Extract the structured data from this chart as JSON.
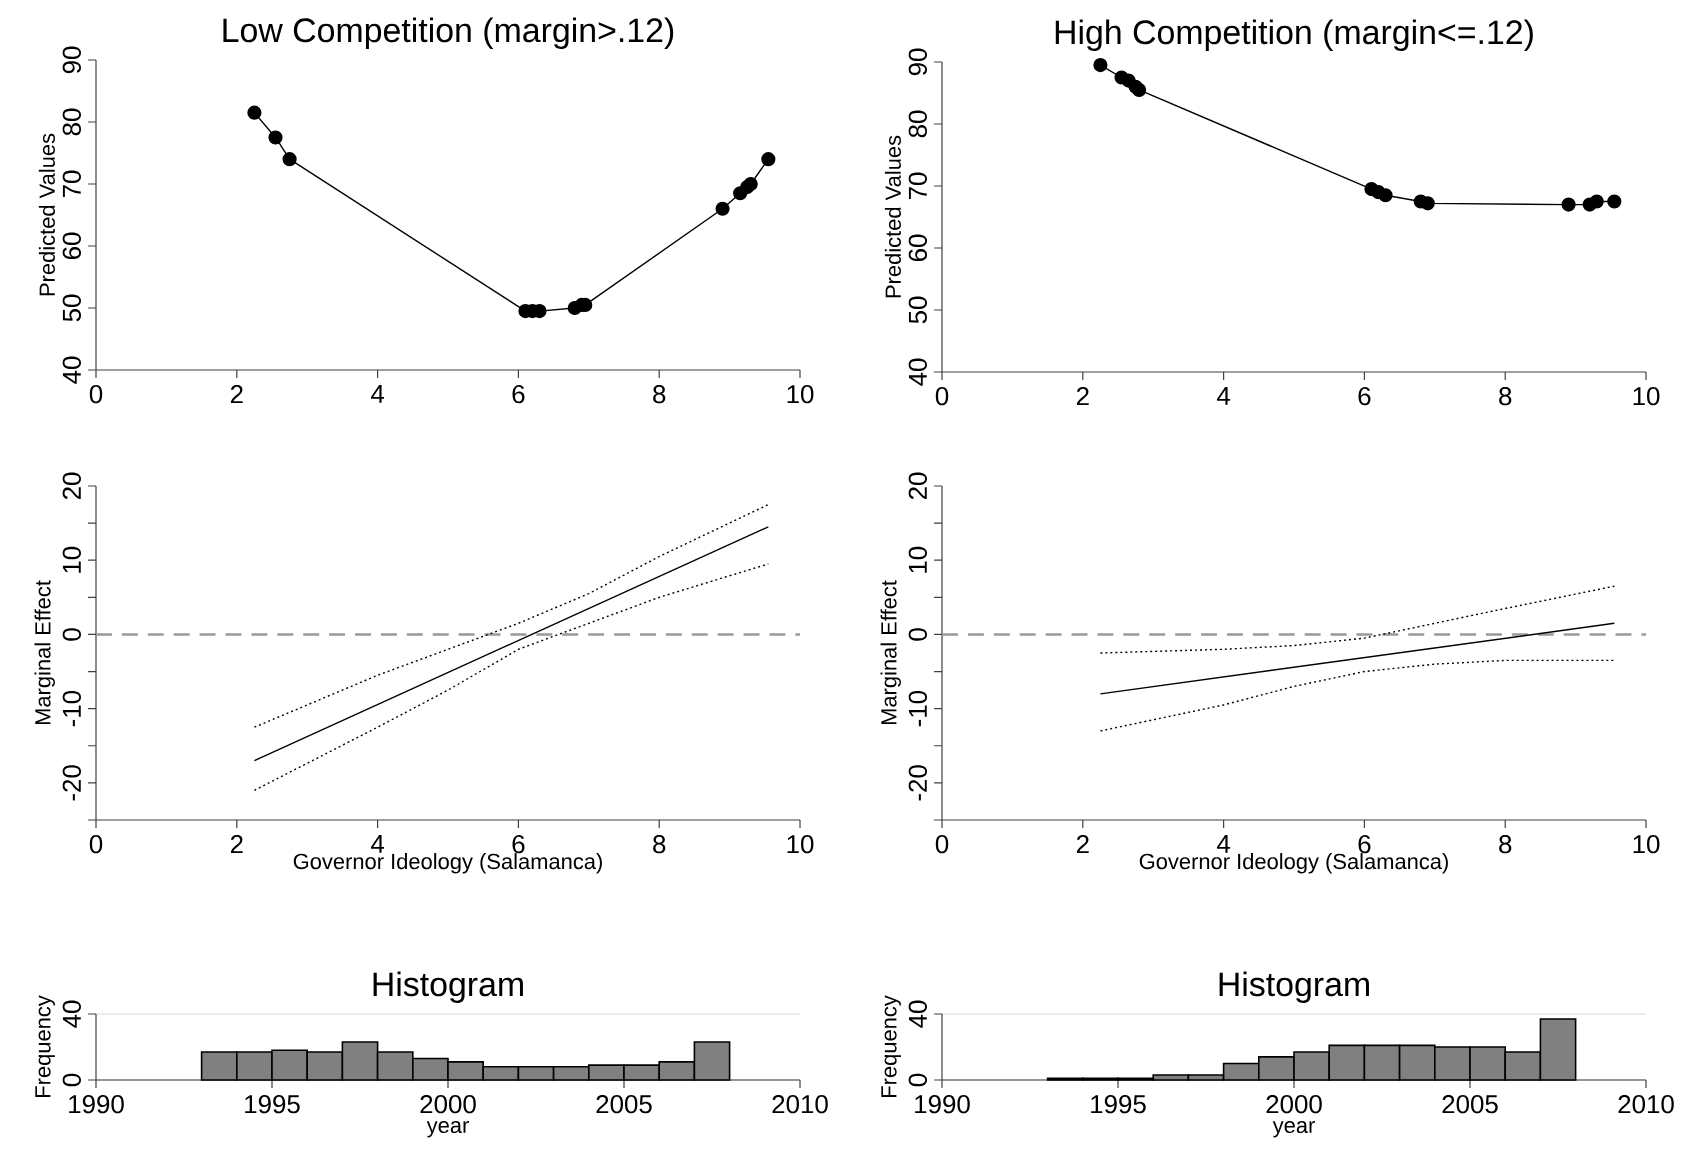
{
  "chart_data": [
    {
      "type": "line",
      "title": "Low Competition (margin>.12)",
      "ylabel": "Predicted Values",
      "marker": "circle",
      "xlim": [
        0,
        10
      ],
      "ylim": [
        40,
        90
      ],
      "xticks": [
        0,
        2,
        4,
        6,
        8,
        10
      ],
      "yticks": [
        40,
        50,
        60,
        70,
        80,
        90
      ],
      "series": [
        {
          "color": "#000000",
          "x": [
            2.25,
            2.55,
            2.75,
            6.1,
            6.2,
            6.3,
            6.8,
            6.9,
            6.95,
            8.9,
            9.15,
            9.25,
            9.3,
            9.55
          ],
          "values": [
            81.5,
            77.5,
            74,
            49.5,
            49.5,
            49.5,
            50,
            50.5,
            50.5,
            66,
            68.5,
            69.5,
            70,
            74
          ]
        }
      ]
    },
    {
      "type": "line",
      "title": "High Competition (margin<=.12)",
      "ylabel": "Predicted Values",
      "marker": "circle",
      "xlim": [
        0,
        10
      ],
      "ylim": [
        40,
        90
      ],
      "xticks": [
        0,
        2,
        4,
        6,
        8,
        10
      ],
      "yticks": [
        40,
        50,
        60,
        70,
        80,
        90
      ],
      "series": [
        {
          "color": "#000000",
          "x": [
            2.25,
            2.55,
            2.65,
            2.75,
            2.8,
            6.1,
            6.2,
            6.3,
            6.8,
            6.9,
            8.9,
            9.2,
            9.3,
            9.55
          ],
          "values": [
            89.5,
            87.5,
            87,
            86,
            85.5,
            69.5,
            69,
            68.5,
            67.5,
            67.2,
            67,
            67,
            67.5,
            67.5
          ]
        }
      ]
    },
    {
      "type": "line",
      "xlabel": "Governor Ideology (Salamanca)",
      "ylabel": "Marginal Effect",
      "xlim": [
        0,
        10
      ],
      "ylim": [
        -25,
        20
      ],
      "xticks": [
        0,
        2,
        4,
        6,
        8,
        10
      ],
      "yticks": [
        {
          "value": -25,
          "label": null
        },
        -20,
        {
          "value": -15,
          "label": null
        },
        -10,
        {
          "value": -5,
          "label": null
        },
        0,
        {
          "value": 5,
          "label": null
        },
        10,
        {
          "value": 15,
          "label": null
        },
        20
      ],
      "ref_lines": [
        {
          "axis": "y",
          "value": 0,
          "color": "#999999",
          "line_style": "dashed"
        }
      ],
      "series": [
        {
          "color": "#000000",
          "line_style": "solid",
          "x": [
            2.25,
            9.55
          ],
          "values": [
            -17,
            14.5
          ]
        },
        {
          "color": "#000000",
          "line_style": "dotted",
          "x": [
            2.25,
            4,
            5,
            6,
            7,
            8,
            9.55
          ],
          "values": [
            -12.5,
            -5.5,
            -2,
            1.5,
            5.5,
            10.5,
            17.5
          ]
        },
        {
          "color": "#000000",
          "line_style": "dotted",
          "x": [
            2.25,
            4,
            5,
            6,
            7,
            8,
            9.55
          ],
          "values": [
            -21,
            -12.5,
            -7.5,
            -2,
            1.5,
            5,
            9.5
          ]
        }
      ]
    },
    {
      "type": "line",
      "xlabel": "Governor Ideology (Salamanca)",
      "ylabel": "Marginal Effect",
      "xlim": [
        0,
        10
      ],
      "ylim": [
        -25,
        20
      ],
      "xticks": [
        0,
        2,
        4,
        6,
        8,
        10
      ],
      "yticks": [
        {
          "value": -25,
          "label": null
        },
        -20,
        {
          "value": -15,
          "label": null
        },
        -10,
        {
          "value": -5,
          "label": null
        },
        0,
        {
          "value": 5,
          "label": null
        },
        10,
        {
          "value": 15,
          "label": null
        },
        20
      ],
      "ref_lines": [
        {
          "axis": "y",
          "value": 0,
          "color": "#999999",
          "line_style": "dashed"
        }
      ],
      "series": [
        {
          "color": "#000000",
          "line_style": "solid",
          "x": [
            2.25,
            9.55
          ],
          "values": [
            -8,
            1.5
          ]
        },
        {
          "color": "#000000",
          "line_style": "dotted",
          "x": [
            2.25,
            4,
            5,
            6,
            7,
            8,
            9.55
          ],
          "values": [
            -2.5,
            -2,
            -1.5,
            -0.5,
            1.5,
            3.5,
            6.5
          ]
        },
        {
          "color": "#000000",
          "line_style": "dotted",
          "x": [
            2.25,
            4,
            5,
            6,
            7,
            8,
            9.55
          ],
          "values": [
            -13,
            -9.5,
            -7,
            -5,
            -4,
            -3.5,
            -3.5
          ]
        }
      ]
    },
    {
      "type": "histogram",
      "title": "Histogram",
      "xlabel": "year",
      "ylabel": "Frequency",
      "color": "#808080",
      "grid": "y",
      "xlim": [
        1990,
        2010
      ],
      "ylim": [
        0,
        40
      ],
      "xticks": [
        1990,
        1995,
        2000,
        2005,
        2010
      ],
      "yticks": [
        0,
        40
      ],
      "bins": [
        1993,
        1994,
        1995,
        1996,
        1997,
        1998,
        1999,
        2000,
        2001,
        2002,
        2003,
        2004,
        2005,
        2006,
        2007,
        2008
      ],
      "values": [
        17,
        17,
        18,
        17,
        23,
        17,
        13,
        11,
        8,
        8,
        8,
        9,
        9,
        11,
        23
      ]
    },
    {
      "type": "histogram",
      "title": "Histogram",
      "xlabel": "year",
      "ylabel": "Frequency",
      "color": "#808080",
      "grid": "y",
      "xlim": [
        1990,
        2010
      ],
      "ylim": [
        0,
        40
      ],
      "xticks": [
        1990,
        1995,
        2000,
        2005,
        2010
      ],
      "yticks": [
        0,
        40
      ],
      "bins": [
        1993,
        1994,
        1995,
        1996,
        1997,
        1998,
        1999,
        2000,
        2001,
        2002,
        2003,
        2004,
        2005,
        2006,
        2007,
        2008
      ],
      "values": [
        1,
        1,
        1,
        3,
        3,
        10,
        14,
        17,
        21,
        21,
        21,
        20,
        20,
        17,
        37
      ]
    }
  ]
}
